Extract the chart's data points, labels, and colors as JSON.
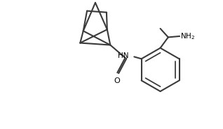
{
  "background": "#ffffff",
  "line_color": "#3a3a3a",
  "line_width": 1.5,
  "text_color": "#000000",
  "fig_width": 3.18,
  "fig_height": 1.85,
  "dpi": 100
}
